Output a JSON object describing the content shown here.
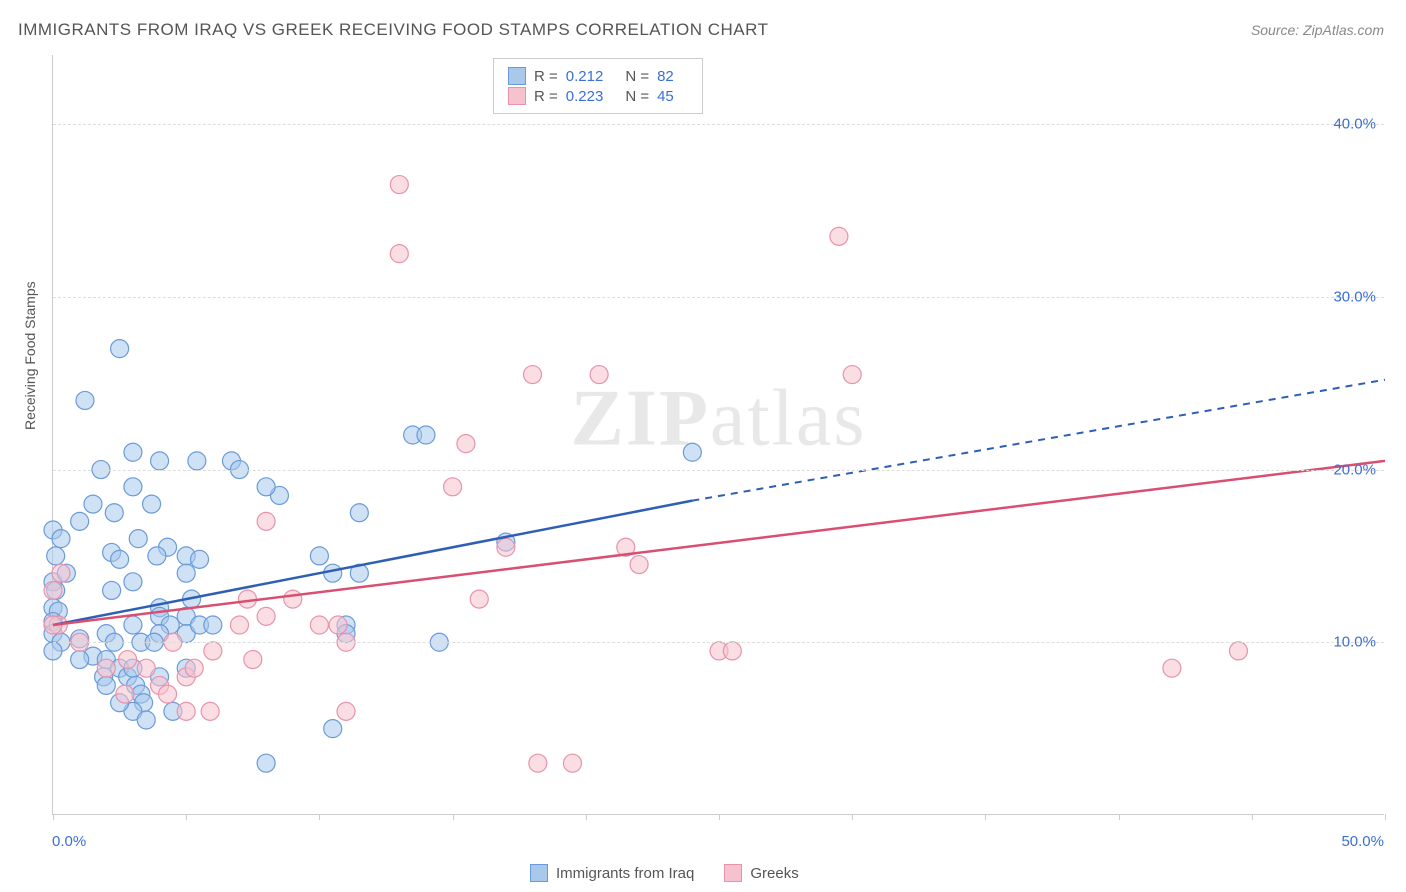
{
  "title": "IMMIGRANTS FROM IRAQ VS GREEK RECEIVING FOOD STAMPS CORRELATION CHART",
  "source": "Source: ZipAtlas.com",
  "watermark_bold": "ZIP",
  "watermark_rest": "atlas",
  "y_axis_label": "Receiving Food Stamps",
  "chart": {
    "type": "scatter",
    "xlim": [
      0,
      50
    ],
    "ylim": [
      0,
      44
    ],
    "x_ticks": [
      0,
      5,
      10,
      15,
      20,
      25,
      30,
      35,
      40,
      45,
      50
    ],
    "y_gridlines": [
      10,
      20,
      30,
      40
    ],
    "x_tick_labels": {
      "0": "0.0%",
      "50": "50.0%"
    },
    "y_tick_labels": {
      "10": "10.0%",
      "20": "20.0%",
      "30": "30.0%",
      "40": "40.0%"
    },
    "background_color": "#ffffff",
    "grid_color": "#dddddd",
    "axis_color": "#cccccc",
    "tick_label_color": "#3b6fd4",
    "marker_radius": 9,
    "marker_stroke_width": 1.2,
    "line_width": 2.5,
    "series": [
      {
        "name": "Immigrants from Iraq",
        "fill_color": "#a8c8ec",
        "stroke_color": "#6a9bd8",
        "fill_opacity": 0.55,
        "line_color": "#2e5fb5",
        "regression": {
          "x1": 0,
          "y1": 11.0,
          "x2_solid": 24,
          "y2_solid": 18.2,
          "x2_dash": 50,
          "y2_dash": 25.2
        },
        "R": 0.212,
        "N": 82,
        "points": [
          [
            0.0,
            13.5
          ],
          [
            0.1,
            13.0
          ],
          [
            0.0,
            12.0
          ],
          [
            0.2,
            11.8
          ],
          [
            0.0,
            11.2
          ],
          [
            0.0,
            16.5
          ],
          [
            0.3,
            16.0
          ],
          [
            0.1,
            15.0
          ],
          [
            0.5,
            14.0
          ],
          [
            0.0,
            10.5
          ],
          [
            1.0,
            10.2
          ],
          [
            0.3,
            10.0
          ],
          [
            0.0,
            9.5
          ],
          [
            1.5,
            9.2
          ],
          [
            2.5,
            27.0
          ],
          [
            1.8,
            20.0
          ],
          [
            3.0,
            19.0
          ],
          [
            1.5,
            18.0
          ],
          [
            3.7,
            18.0
          ],
          [
            2.3,
            17.5
          ],
          [
            1.0,
            17.0
          ],
          [
            1.2,
            24.0
          ],
          [
            3.0,
            21.0
          ],
          [
            4.0,
            20.5
          ],
          [
            3.2,
            16.0
          ],
          [
            4.3,
            15.5
          ],
          [
            3.9,
            15.0
          ],
          [
            2.2,
            15.2
          ],
          [
            2.5,
            14.8
          ],
          [
            5.0,
            15.0
          ],
          [
            5.5,
            14.8
          ],
          [
            5.0,
            14.0
          ],
          [
            5.4,
            20.5
          ],
          [
            6.7,
            20.5
          ],
          [
            4.0,
            12.0
          ],
          [
            5.2,
            12.5
          ],
          [
            5.0,
            11.5
          ],
          [
            4.0,
            11.5
          ],
          [
            4.4,
            11.0
          ],
          [
            3.0,
            11.0
          ],
          [
            3.3,
            10.0
          ],
          [
            2.0,
            10.5
          ],
          [
            2.3,
            10.0
          ],
          [
            4.0,
            10.5
          ],
          [
            3.8,
            10.0
          ],
          [
            5.0,
            10.5
          ],
          [
            5.5,
            11.0
          ],
          [
            6.0,
            11.0
          ],
          [
            1.0,
            9.0
          ],
          [
            2.0,
            9.0
          ],
          [
            2.5,
            8.5
          ],
          [
            2.8,
            8.0
          ],
          [
            1.9,
            8.0
          ],
          [
            3.0,
            8.5
          ],
          [
            3.1,
            7.5
          ],
          [
            4.0,
            8.0
          ],
          [
            3.3,
            7.0
          ],
          [
            3.4,
            6.5
          ],
          [
            3.0,
            6.0
          ],
          [
            3.5,
            5.5
          ],
          [
            4.5,
            6.0
          ],
          [
            2.0,
            7.5
          ],
          [
            2.5,
            6.5
          ],
          [
            5.0,
            8.5
          ],
          [
            8.5,
            18.5
          ],
          [
            8.0,
            19.0
          ],
          [
            7.0,
            20.0
          ],
          [
            10.0,
            15.0
          ],
          [
            11.5,
            17.5
          ],
          [
            10.5,
            14.0
          ],
          [
            11.5,
            14.0
          ],
          [
            11.0,
            11.0
          ],
          [
            11.0,
            10.5
          ],
          [
            10.5,
            5.0
          ],
          [
            8.0,
            3.0
          ],
          [
            13.5,
            22.0
          ],
          [
            14.0,
            22.0
          ],
          [
            14.5,
            10.0
          ],
          [
            17.0,
            15.8
          ],
          [
            24.0,
            21.0
          ],
          [
            3.0,
            13.5
          ],
          [
            2.2,
            13.0
          ]
        ]
      },
      {
        "name": "Greeks",
        "fill_color": "#f5c2ce",
        "stroke_color": "#e793ab",
        "fill_opacity": 0.55,
        "line_color": "#d94f72",
        "regression": {
          "x1": 0,
          "y1": 11.0,
          "x2_solid": 50,
          "y2_solid": 20.5
        },
        "R": 0.223,
        "N": 45,
        "points": [
          [
            0.3,
            14.0
          ],
          [
            0.0,
            13.0
          ],
          [
            0.2,
            11.0
          ],
          [
            0.0,
            11.0
          ],
          [
            2.8,
            9.0
          ],
          [
            2.0,
            8.5
          ],
          [
            2.7,
            7.0
          ],
          [
            3.5,
            8.5
          ],
          [
            4.0,
            7.5
          ],
          [
            4.3,
            7.0
          ],
          [
            5.0,
            8.0
          ],
          [
            5.3,
            8.5
          ],
          [
            5.0,
            6.0
          ],
          [
            5.9,
            6.0
          ],
          [
            7.5,
            9.0
          ],
          [
            7.0,
            11.0
          ],
          [
            7.3,
            12.5
          ],
          [
            8.0,
            11.5
          ],
          [
            8.0,
            17.0
          ],
          [
            9.0,
            12.5
          ],
          [
            10.0,
            11.0
          ],
          [
            10.7,
            11.0
          ],
          [
            11.0,
            10.0
          ],
          [
            11.0,
            6.0
          ],
          [
            13.0,
            36.5
          ],
          [
            13.0,
            32.5
          ],
          [
            15.0,
            19.0
          ],
          [
            15.5,
            21.5
          ],
          [
            16.0,
            12.5
          ],
          [
            17.0,
            15.5
          ],
          [
            18.0,
            25.5
          ],
          [
            20.5,
            25.5
          ],
          [
            18.2,
            3.0
          ],
          [
            19.5,
            3.0
          ],
          [
            21.5,
            15.5
          ],
          [
            22.0,
            14.5
          ],
          [
            25.0,
            9.5
          ],
          [
            25.5,
            9.5
          ],
          [
            29.5,
            33.5
          ],
          [
            30.0,
            25.5
          ],
          [
            42.0,
            8.5
          ],
          [
            44.5,
            9.5
          ],
          [
            1.0,
            10.0
          ],
          [
            4.5,
            10.0
          ],
          [
            6.0,
            9.5
          ]
        ]
      }
    ]
  },
  "legend_top": {
    "rows": [
      {
        "swatch_fill": "#a8c8ec",
        "swatch_stroke": "#6a9bd8",
        "R_label": "R =",
        "R_val": "0.212",
        "N_label": "N =",
        "N_val": "82"
      },
      {
        "swatch_fill": "#f5c2ce",
        "swatch_stroke": "#e793ab",
        "R_label": "R =",
        "R_val": "0.223",
        "N_label": "N =",
        "N_val": "45"
      }
    ]
  },
  "legend_bottom": {
    "items": [
      {
        "swatch_fill": "#a8c8ec",
        "swatch_stroke": "#6a9bd8",
        "label": "Immigrants from Iraq"
      },
      {
        "swatch_fill": "#f5c2ce",
        "swatch_stroke": "#e793ab",
        "label": "Greeks"
      }
    ]
  }
}
